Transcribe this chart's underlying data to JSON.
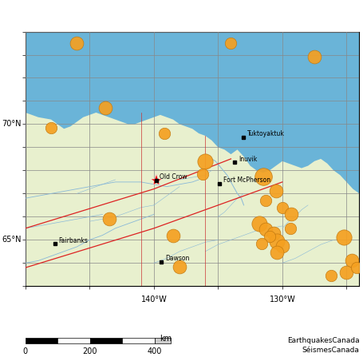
{
  "land_color": "#e8f0ce",
  "ocean_color": "#6ab4d8",
  "grid_color": "#888888",
  "river_color": "#88b8d8",
  "fault_color": "#dd2222",
  "border_color": "#cc3333",
  "eq_color": "#f5a020",
  "eq_edgecolor": "#c07810",
  "star_color": "#ee1111",
  "xlim": [
    -150,
    -124
  ],
  "ylim": [
    63.0,
    74.0
  ],
  "cities": [
    {
      "name": "Tuktoyaktuk",
      "lon": -133.05,
      "lat": 69.44
    },
    {
      "name": "Inuvik",
      "lon": -133.72,
      "lat": 68.36
    },
    {
      "name": "Fort McPherson",
      "lon": -134.88,
      "lat": 67.43
    },
    {
      "name": "Fairbanks",
      "lon": -147.72,
      "lat": 64.84
    },
    {
      "name": "Dawson",
      "lon": -139.43,
      "lat": 64.06
    },
    {
      "name": "Old Crow",
      "lon": -139.83,
      "lat": 67.57
    }
  ],
  "star_lon": -139.83,
  "star_lat": 67.57,
  "earthquakes": [
    {
      "lon": -146.0,
      "lat": 73.5,
      "r": 7
    },
    {
      "lon": -134.0,
      "lat": 73.5,
      "r": 6
    },
    {
      "lon": -127.5,
      "lat": 72.9,
      "r": 7
    },
    {
      "lon": -143.8,
      "lat": 70.7,
      "r": 7
    },
    {
      "lon": -148.0,
      "lat": 69.85,
      "r": 6
    },
    {
      "lon": -139.2,
      "lat": 69.6,
      "r": 6
    },
    {
      "lon": -136.0,
      "lat": 68.4,
      "r": 8
    },
    {
      "lon": -136.2,
      "lat": 67.85,
      "r": 6
    },
    {
      "lon": -143.5,
      "lat": 65.9,
      "r": 7
    },
    {
      "lon": -138.5,
      "lat": 65.2,
      "r": 7
    },
    {
      "lon": -131.5,
      "lat": 67.75,
      "r": 9
    },
    {
      "lon": -130.5,
      "lat": 67.1,
      "r": 7
    },
    {
      "lon": -131.3,
      "lat": 66.7,
      "r": 6
    },
    {
      "lon": -130.0,
      "lat": 66.4,
      "r": 6
    },
    {
      "lon": -129.3,
      "lat": 66.1,
      "r": 7
    },
    {
      "lon": -131.8,
      "lat": 65.7,
      "r": 8
    },
    {
      "lon": -131.3,
      "lat": 65.45,
      "r": 7
    },
    {
      "lon": -130.7,
      "lat": 65.3,
      "r": 7
    },
    {
      "lon": -130.4,
      "lat": 64.95,
      "r": 8
    },
    {
      "lon": -131.0,
      "lat": 65.15,
      "r": 6
    },
    {
      "lon": -130.0,
      "lat": 64.75,
      "r": 7
    },
    {
      "lon": -129.4,
      "lat": 65.5,
      "r": 6
    },
    {
      "lon": -130.4,
      "lat": 64.45,
      "r": 7
    },
    {
      "lon": -131.6,
      "lat": 64.85,
      "r": 6
    },
    {
      "lon": -125.2,
      "lat": 65.1,
      "r": 8
    },
    {
      "lon": -124.6,
      "lat": 64.1,
      "r": 7
    },
    {
      "lon": -138.0,
      "lat": 63.85,
      "r": 7
    },
    {
      "lon": -126.2,
      "lat": 63.45,
      "r": 6
    },
    {
      "lon": -125.0,
      "lat": 63.6,
      "r": 7
    },
    {
      "lon": -124.2,
      "lat": 63.8,
      "r": 6
    }
  ],
  "coast_x": [
    -150,
    -150,
    -149,
    -148,
    -147.5,
    -147,
    -146.5,
    -146,
    -145.5,
    -145,
    -144.5,
    -144,
    -143.5,
    -143,
    -142.5,
    -142,
    -141.5,
    -141,
    -140.5,
    -140,
    -139.5,
    -139,
    -138.5,
    -138,
    -137.5,
    -137,
    -136.5,
    -136,
    -135.5,
    -135,
    -134.5,
    -134,
    -133.5,
    -133,
    -132.5,
    -132,
    -131.5,
    -131,
    -130.5,
    -130,
    -129.5,
    -129,
    -128.5,
    -128,
    -127.5,
    -127,
    -126.5,
    -126,
    -125.5,
    -125,
    -124.5,
    -124,
    -124
  ],
  "coast_y": [
    74,
    70.5,
    70.3,
    70.2,
    70.0,
    69.8,
    69.9,
    70.1,
    70.3,
    70.4,
    70.5,
    70.4,
    70.3,
    70.2,
    70.1,
    70.0,
    70.0,
    70.1,
    70.2,
    70.3,
    70.4,
    70.3,
    70.2,
    70.0,
    69.9,
    69.8,
    69.6,
    69.5,
    69.3,
    69.0,
    68.9,
    68.7,
    68.9,
    68.6,
    68.2,
    68.0,
    67.9,
    68.0,
    68.2,
    68.4,
    68.3,
    68.2,
    68.1,
    68.2,
    68.4,
    68.5,
    68.3,
    68.0,
    67.8,
    67.5,
    67.2,
    67.0,
    74
  ],
  "mackenzie_delta_x": [
    -135.5,
    -135.0,
    -134.5,
    -134.0,
    -133.5,
    -133.0,
    -132.5,
    -132.0,
    -131.5,
    -131.0,
    -130.5,
    -130.0,
    -135.5
  ],
  "mackenzie_delta_y": [
    69.8,
    69.9,
    70.0,
    69.8,
    69.5,
    69.2,
    69.0,
    69.1,
    69.2,
    69.0,
    68.8,
    68.5,
    69.8
  ],
  "lon_gridlines": [
    -150,
    -145,
    -140,
    -135,
    -130,
    -125
  ],
  "lat_gridlines": [
    64,
    65,
    66,
    67,
    68,
    69,
    70,
    71,
    72,
    73,
    74
  ],
  "tick_lons": [
    -140,
    -130
  ],
  "tick_lats": [
    65,
    70
  ],
  "xlabel_140": "140°W",
  "xlabel_130": "130°W",
  "ylabel_65": "65°N",
  "ylabel_70": "70°N"
}
